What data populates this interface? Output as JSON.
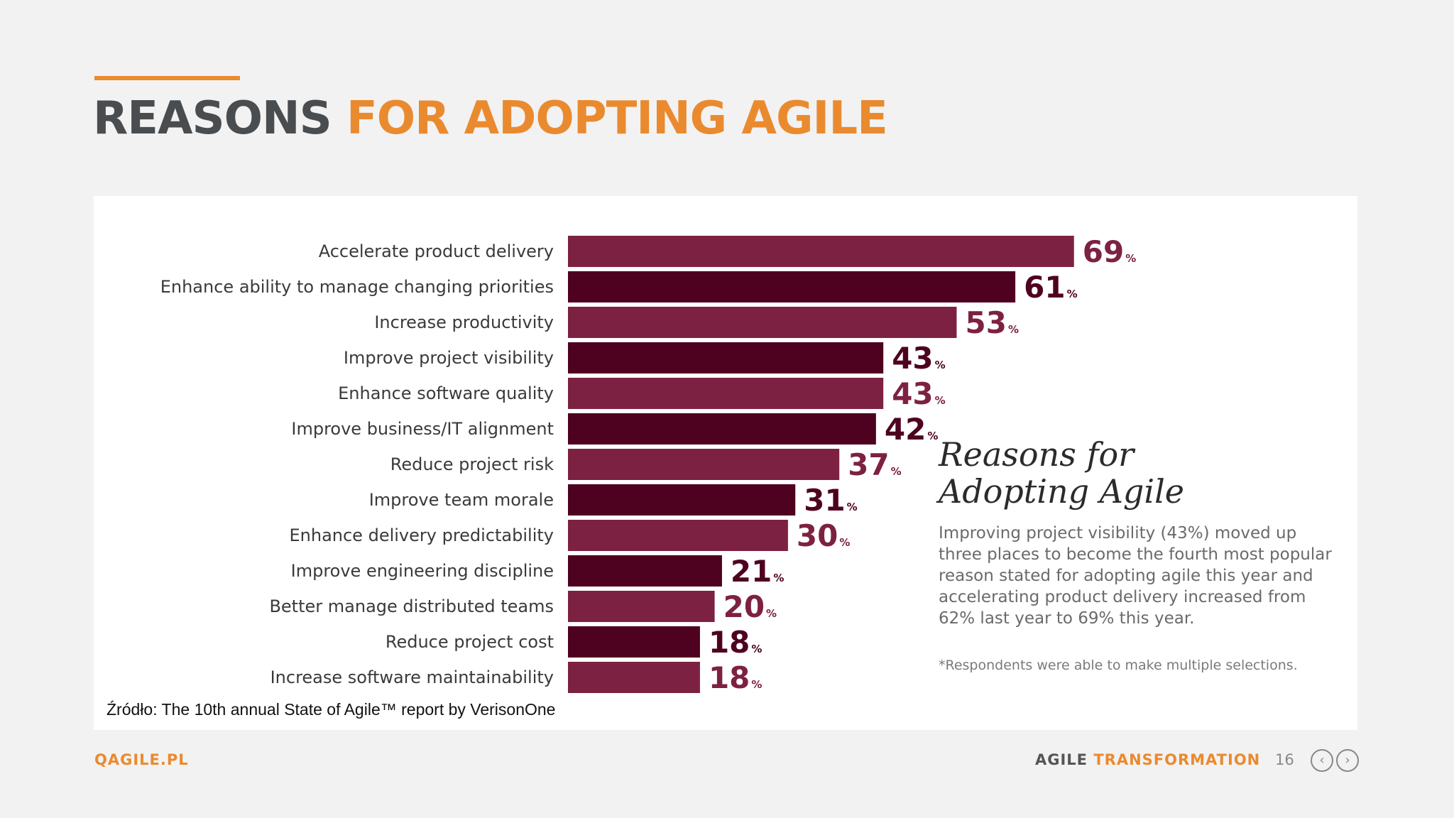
{
  "header": {
    "title_part1": "REASONS",
    "title_part2": "FOR ADOPTING AGILE"
  },
  "chart_data": {
    "type": "bar",
    "orientation": "horizontal",
    "categories": [
      "Accelerate product delivery",
      "Enhance ability to manage changing priorities",
      "Increase productivity",
      "Improve project visibility",
      "Enhance software quality",
      "Improve business/IT alignment",
      "Reduce project risk",
      "Improve team morale",
      "Enhance delivery predictability",
      "Improve engineering discipline",
      "Better manage distributed teams",
      "Reduce project cost",
      "Increase software maintainability"
    ],
    "values": [
      69,
      61,
      53,
      43,
      43,
      42,
      37,
      31,
      30,
      21,
      20,
      18,
      18
    ],
    "value_suffix": "%",
    "colors": [
      "#7d2142",
      "#4e0220"
    ],
    "grid": false,
    "legend": "none"
  },
  "sidebar": {
    "title_line1": "Reasons for",
    "title_line2": "Adopting Agile",
    "text": "Improving project visibility (43%) moved up three places to become the fourth most popular reason stated for adopting agile this year and accelerating product delivery increased from 62% last year to 69% this year.",
    "note": "*Respondents were able to make multiple selections."
  },
  "source": "Źródło: The 10th annual State of Agile™ report by VerisonOne",
  "footer": {
    "brand": "QAGILE.PL",
    "section_part1": "AGILE",
    "section_part2": "TRANSFORMATION",
    "page": "16",
    "prev_icon": "chevron-left-icon",
    "next_icon": "chevron-right-icon"
  },
  "colors": {
    "accent": "#ea8a2f",
    "title_dark": "#4a4d50",
    "bar_light": "#7d2142",
    "bar_dark": "#4e0220"
  }
}
